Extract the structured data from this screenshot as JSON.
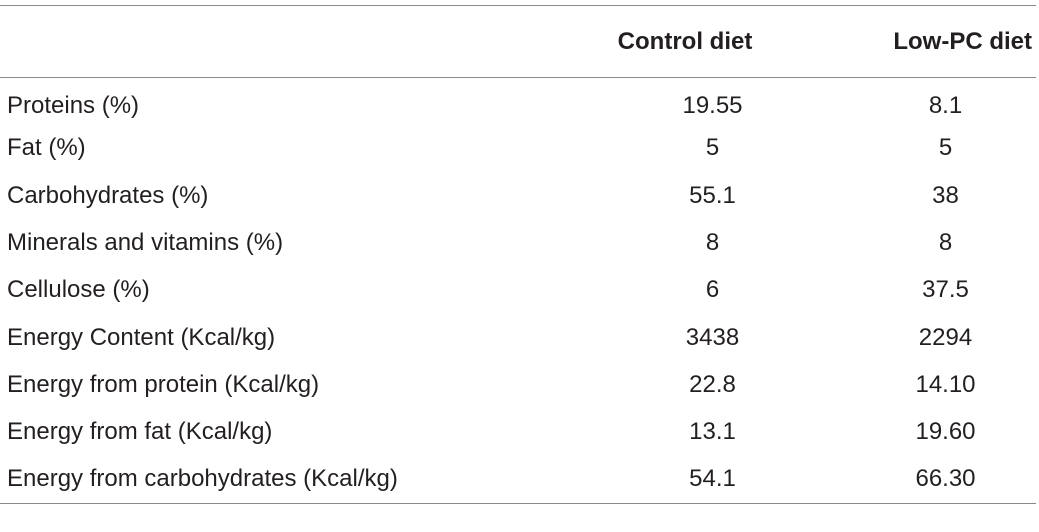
{
  "table": {
    "headers": [
      "",
      "Control diet",
      "Low-PC diet"
    ],
    "rows": [
      {
        "label": "Proteins (%)",
        "control": "19.55",
        "low_pc": "8.1"
      },
      {
        "label": "Fat (%)",
        "control": "5",
        "low_pc": "5"
      },
      {
        "label": "Carbohydrates (%)",
        "control": "55.1",
        "low_pc": "38"
      },
      {
        "label": "Minerals and vitamins (%)",
        "control": "8",
        "low_pc": "8"
      },
      {
        "label": "Cellulose (%)",
        "control": "6",
        "low_pc": "37.5"
      },
      {
        "label": "Energy Content (Kcal/kg)",
        "control": "3438",
        "low_pc": "2294"
      },
      {
        "label": "Energy from protein (Kcal/kg)",
        "control": "22.8",
        "low_pc": "14.10"
      },
      {
        "label": "Energy from fat (Kcal/kg)",
        "control": "13.1",
        "low_pc": "19.60"
      },
      {
        "label": "Energy from carbohydrates (Kcal/kg)",
        "control": "54.1",
        "low_pc": "66.30"
      }
    ]
  }
}
